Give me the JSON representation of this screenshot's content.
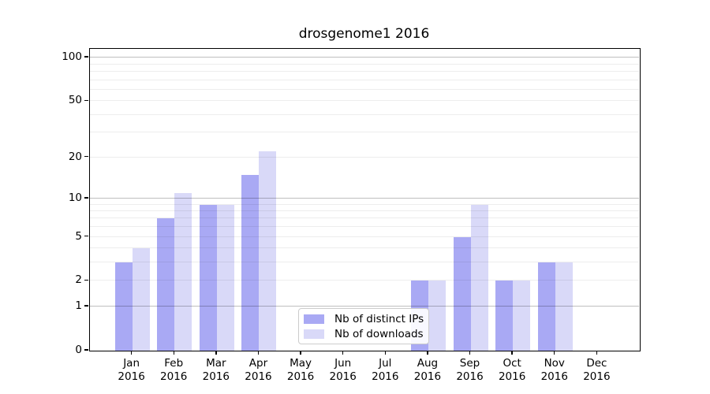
{
  "title": "drosgenome1 2016",
  "chart_data": {
    "type": "bar",
    "title": "drosgenome1 2016",
    "categories": [
      "Jan",
      "Feb",
      "Mar",
      "Apr",
      "May",
      "Jun",
      "Jul",
      "Aug",
      "Sep",
      "Oct",
      "Nov",
      "Dec"
    ],
    "year_label": "2016",
    "series": [
      {
        "name": "Nb of distinct IPs",
        "color": "#a9a9f4",
        "values": [
          3,
          7,
          9,
          15,
          0,
          0,
          0,
          2,
          5,
          2,
          3,
          0
        ]
      },
      {
        "name": "Nb of downloads",
        "color": "#d9d9f8",
        "values": [
          4,
          11,
          9,
          22,
          0,
          0,
          0,
          2,
          9,
          2,
          3,
          0
        ]
      }
    ],
    "xlabel": "",
    "ylabel": "",
    "y_axis": {
      "scale": "log10(1+x)",
      "tick_labels": [
        "0",
        "1",
        "2",
        "5",
        "10",
        "20",
        "50",
        "100"
      ],
      "tick_values": [
        0,
        1,
        2,
        5,
        10,
        20,
        50,
        100
      ],
      "major_gridlines": [
        1,
        10,
        100
      ],
      "minor_gridlines": [
        2,
        3,
        4,
        5,
        6,
        7,
        8,
        9,
        20,
        30,
        40,
        50,
        60,
        70,
        80,
        90
      ],
      "ylim": [
        0,
        114
      ]
    },
    "legend": {
      "position": "bottom-center",
      "entries": [
        "Nb of distinct IPs",
        "Nb of downloads"
      ]
    },
    "grid": "on"
  }
}
